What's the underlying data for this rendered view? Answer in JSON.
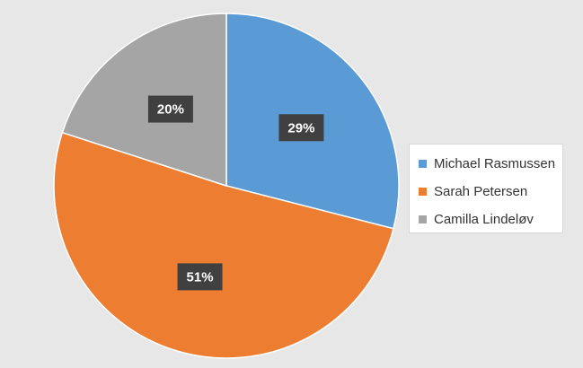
{
  "chart_data": {
    "type": "pie",
    "title": "",
    "start_angle_deg": 0,
    "direction": "clockwise",
    "slices": [
      {
        "name": "Michael Rasmussen",
        "value": 29,
        "label": "29%",
        "color": "#5b9bd5"
      },
      {
        "name": "Sarah Petersen",
        "value": 51,
        "label": "51%",
        "color": "#ed7d31"
      },
      {
        "name": "Camilla Lindeløv",
        "value": 20,
        "label": "20%",
        "color": "#a5a5a5"
      }
    ],
    "legend": {
      "position": "right",
      "items": [
        "Michael Rasmussen",
        "Sarah Petersen",
        "Camilla Lindeløv"
      ]
    },
    "data_label_style": {
      "background": "#404040",
      "text_color": "#ffffff"
    },
    "background_color": "#e7e7e7"
  }
}
